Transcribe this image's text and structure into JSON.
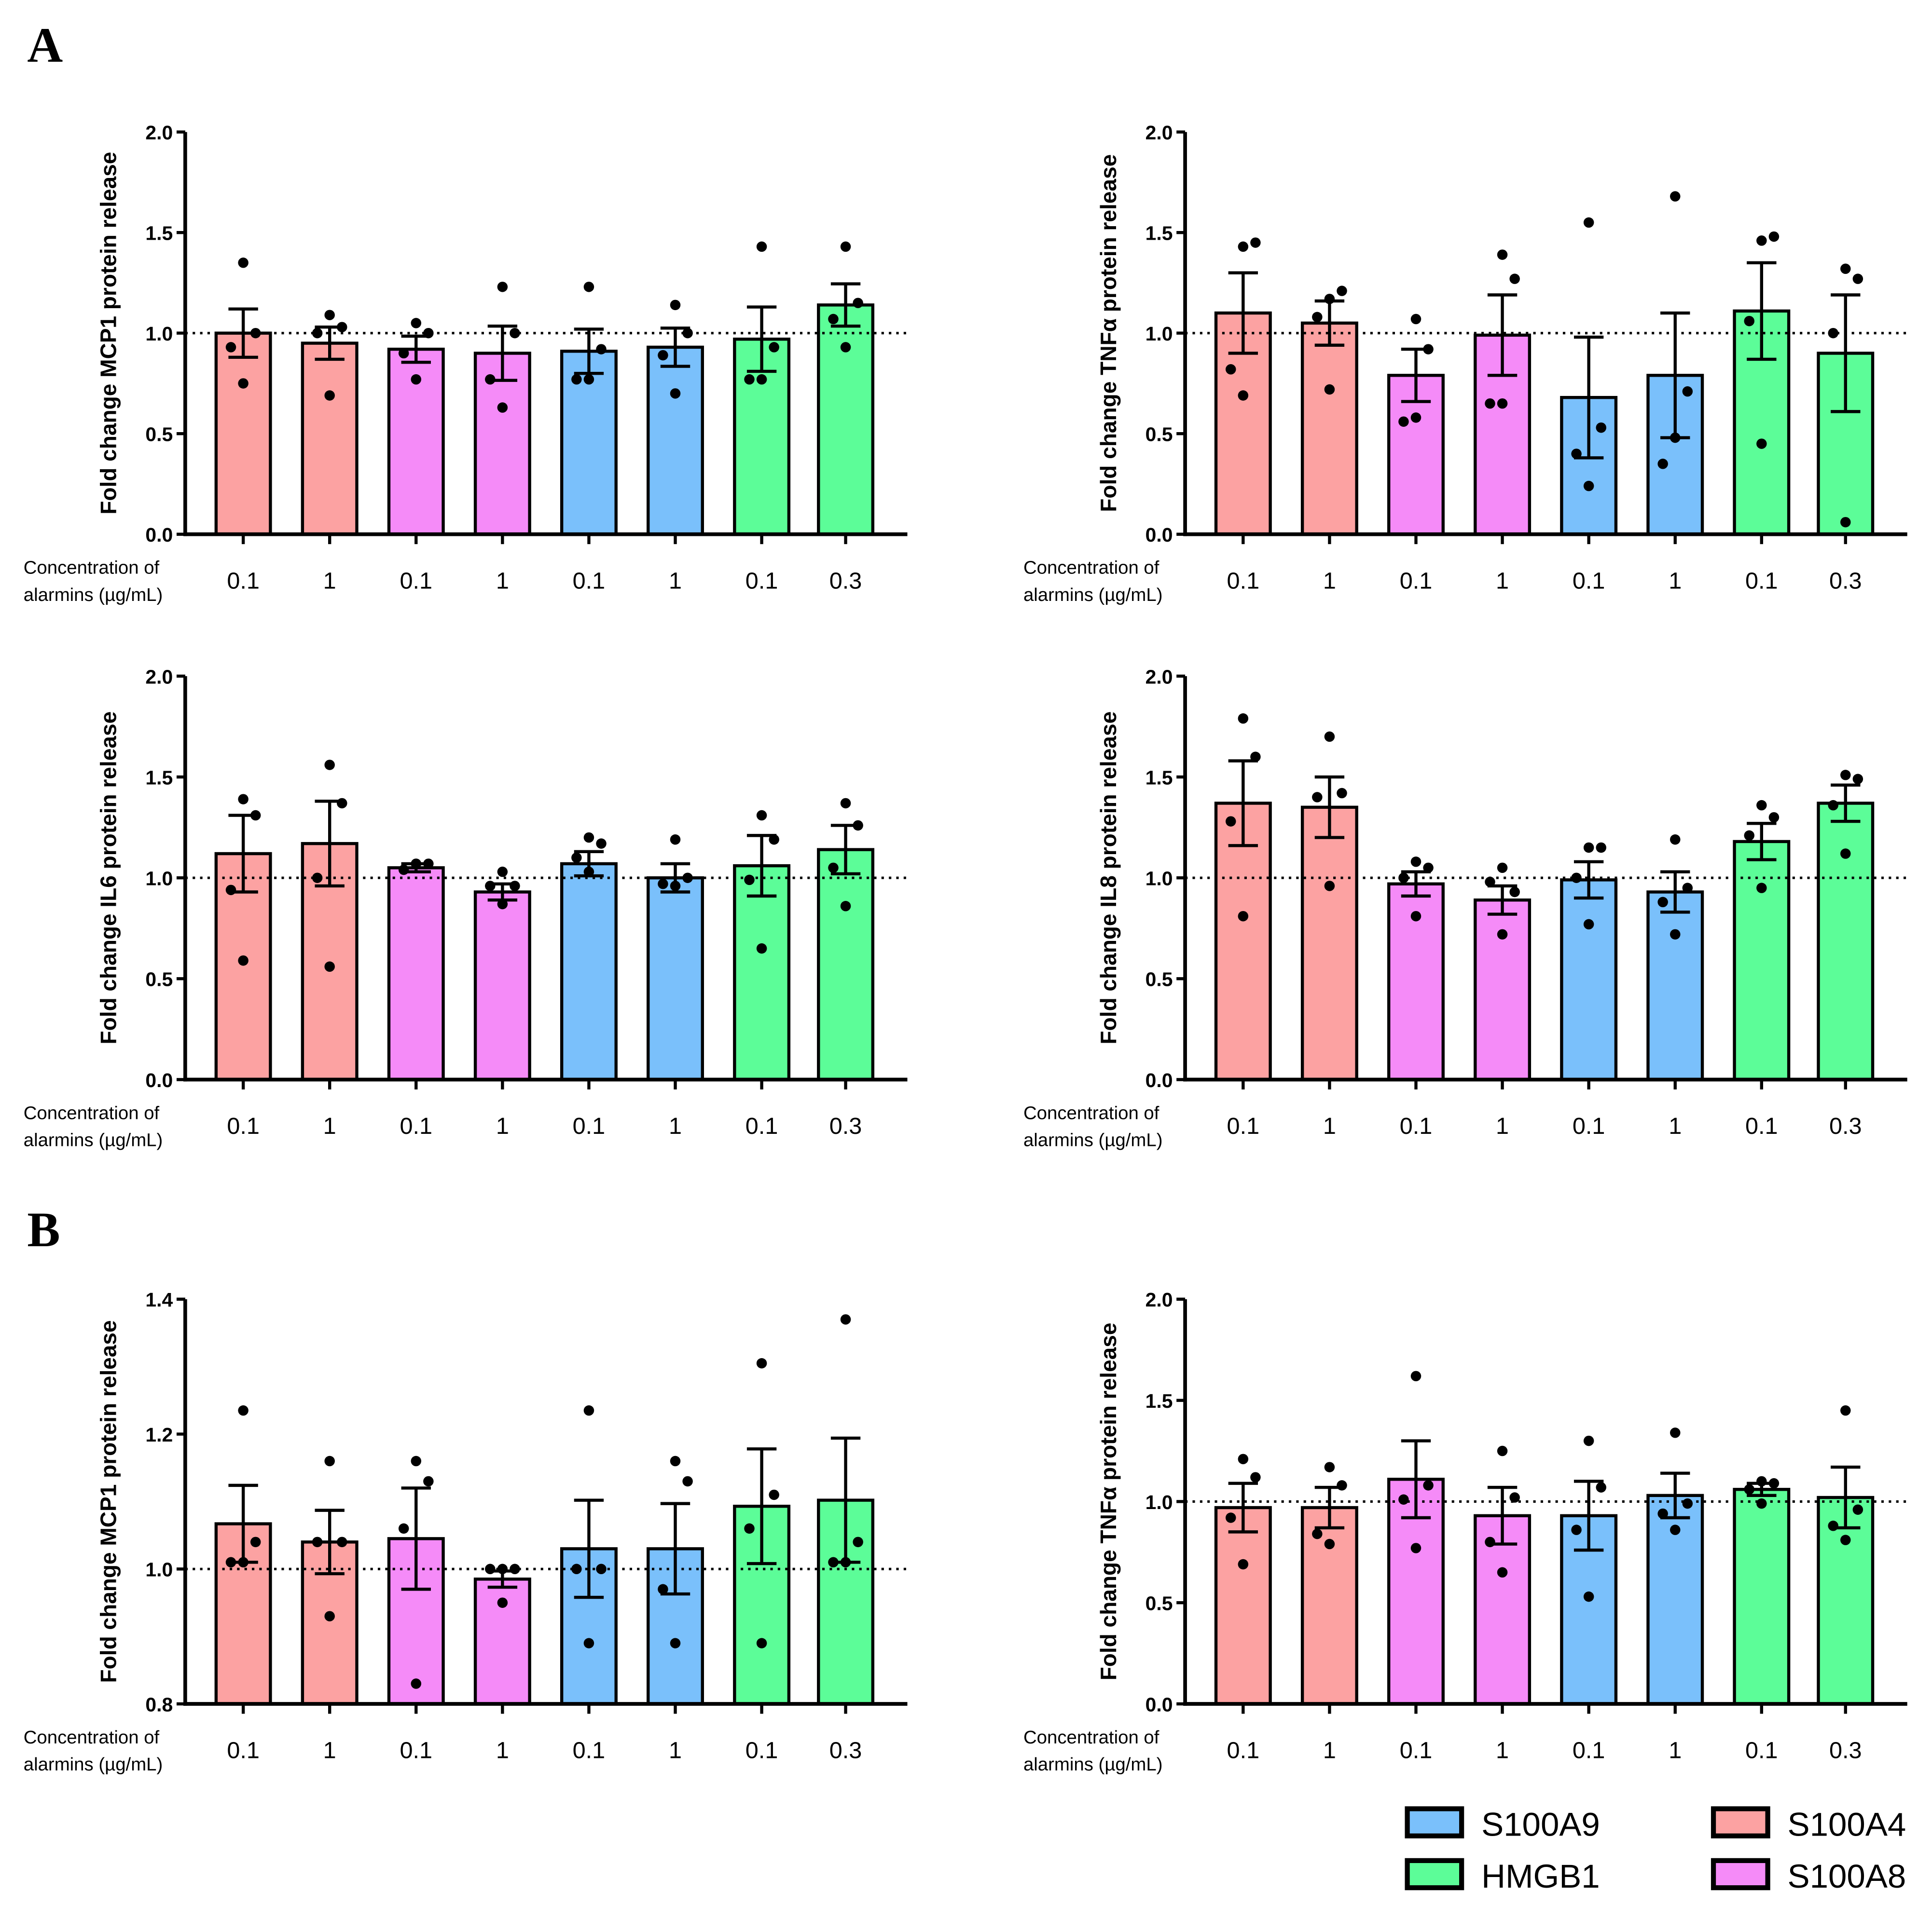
{
  "panel_labels": [
    "A",
    "B"
  ],
  "concentration_label": [
    "Concentration of",
    "alarmins (µg/mL)"
  ],
  "legend": [
    {
      "name": "S100A9",
      "color": "#7ac0fb"
    },
    {
      "name": "S100A4",
      "color": "#fca2a2"
    },
    {
      "name": "HMGB1",
      "color": "#5cfd98"
    },
    {
      "name": "S100A8",
      "color": "#f58bf8"
    }
  ],
  "chart_data": [
    {
      "type": "bar",
      "panel": "A",
      "ylabel": "Fold change MCP1 protein release",
      "ylim": [
        0,
        2
      ],
      "yticks": [
        "0.0",
        "0.5",
        "1.0",
        "1.5",
        "2.0"
      ],
      "yticks_values": [
        0,
        0.5,
        1,
        1.5,
        2
      ],
      "reference_line": 1.0,
      "categories": [
        "0.1",
        "1",
        "0.1",
        "1",
        "0.1",
        "1",
        "0.1",
        "0.3"
      ],
      "groups": [
        "S100A4",
        "S100A4",
        "S100A8",
        "S100A8",
        "S100A9",
        "S100A9",
        "HMGB1",
        "HMGB1"
      ],
      "values": [
        1.0,
        0.95,
        0.92,
        0.9,
        0.91,
        0.93,
        0.97,
        1.14
      ],
      "sem": [
        0.12,
        0.08,
        0.065,
        0.135,
        0.11,
        0.095,
        0.16,
        0.105
      ],
      "points": [
        [
          1.35,
          1.0,
          0.93,
          0.75
        ],
        [
          1.09,
          1.03,
          1.0,
          0.69
        ],
        [
          1.05,
          1.0,
          0.9,
          0.77
        ],
        [
          1.23,
          1.0,
          0.77,
          0.63
        ],
        [
          1.23,
          0.92,
          0.77,
          0.77
        ],
        [
          1.14,
          1.0,
          0.89,
          0.7
        ],
        [
          1.43,
          0.93,
          0.77,
          0.77
        ],
        [
          1.43,
          1.15,
          1.07,
          0.93
        ]
      ]
    },
    {
      "type": "bar",
      "panel": "A",
      "ylabel": "Fold change TNFα protein release",
      "ylim": [
        0,
        2
      ],
      "yticks": [
        "0.0",
        "0.5",
        "1.0",
        "1.5",
        "2.0"
      ],
      "yticks_values": [
        0,
        0.5,
        1,
        1.5,
        2
      ],
      "reference_line": 1.0,
      "categories": [
        "0.1",
        "1",
        "0.1",
        "1",
        "0.1",
        "1",
        "0.1",
        "0.3"
      ],
      "groups": [
        "S100A4",
        "S100A4",
        "S100A8",
        "S100A8",
        "S100A9",
        "S100A9",
        "HMGB1",
        "HMGB1"
      ],
      "values": [
        1.1,
        1.05,
        0.79,
        0.99,
        0.68,
        0.79,
        1.11,
        0.9
      ],
      "sem": [
        0.2,
        0.11,
        0.13,
        0.2,
        0.3,
        0.31,
        0.24,
        0.29
      ],
      "points": [
        [
          1.43,
          1.45,
          0.82,
          0.69
        ],
        [
          1.17,
          1.21,
          1.08,
          0.72
        ],
        [
          1.07,
          0.92,
          0.56,
          0.58
        ],
        [
          1.39,
          1.27,
          0.65,
          0.65
        ],
        [
          1.55,
          0.53,
          0.4,
          0.24
        ],
        [
          1.68,
          0.71,
          0.35,
          0.48
        ],
        [
          1.46,
          1.48,
          1.06,
          0.45
        ],
        [
          1.32,
          1.27,
          1.0,
          0.06
        ]
      ]
    },
    {
      "type": "bar",
      "panel": "A",
      "ylabel": "Fold change IL6 protein release",
      "ylim": [
        0,
        2
      ],
      "yticks": [
        "0.0",
        "0.5",
        "1.0",
        "1.5",
        "2.0"
      ],
      "yticks_values": [
        0,
        0.5,
        1,
        1.5,
        2
      ],
      "reference_line": 1.0,
      "categories": [
        "0.1",
        "1",
        "0.1",
        "1",
        "0.1",
        "1",
        "0.1",
        "0.3"
      ],
      "groups": [
        "S100A4",
        "S100A4",
        "S100A8",
        "S100A8",
        "S100A9",
        "S100A9",
        "HMGB1",
        "HMGB1"
      ],
      "values": [
        1.12,
        1.17,
        1.05,
        0.93,
        1.07,
        1.0,
        1.06,
        1.14
      ],
      "sem": [
        0.19,
        0.21,
        0.02,
        0.04,
        0.06,
        0.07,
        0.15,
        0.12
      ],
      "points": [
        [
          1.39,
          1.31,
          0.94,
          0.59
        ],
        [
          1.56,
          1.37,
          1.0,
          0.56
        ],
        [
          1.07,
          1.07,
          1.04,
          1.07
        ],
        [
          1.03,
          0.96,
          0.96,
          0.87
        ],
        [
          1.2,
          1.17,
          1.1,
          1.03
        ],
        [
          1.19,
          1.0,
          0.97,
          0.96
        ],
        [
          1.31,
          1.19,
          0.99,
          0.65
        ],
        [
          1.37,
          1.26,
          1.05,
          0.86
        ]
      ]
    },
    {
      "type": "bar",
      "panel": "A",
      "ylabel": "Fold change IL8 protein release",
      "ylim": [
        0,
        2
      ],
      "yticks": [
        "0.0",
        "0.5",
        "1.0",
        "1.5",
        "2.0"
      ],
      "yticks_values": [
        0,
        0.5,
        1,
        1.5,
        2
      ],
      "reference_line": 1.0,
      "categories": [
        "0.1",
        "1",
        "0.1",
        "1",
        "0.1",
        "1",
        "0.1",
        "0.3"
      ],
      "groups": [
        "S100A4",
        "S100A4",
        "S100A8",
        "S100A8",
        "S100A9",
        "S100A9",
        "HMGB1",
        "HMGB1"
      ],
      "values": [
        1.37,
        1.35,
        0.97,
        0.89,
        0.99,
        0.93,
        1.18,
        1.37
      ],
      "sem": [
        0.21,
        0.15,
        0.06,
        0.07,
        0.09,
        0.1,
        0.09,
        0.09
      ],
      "points": [
        [
          1.79,
          1.6,
          1.28,
          0.81
        ],
        [
          1.7,
          1.42,
          1.4,
          0.96
        ],
        [
          1.08,
          1.05,
          1.0,
          0.81
        ],
        [
          1.05,
          0.93,
          0.98,
          0.72
        ],
        [
          1.15,
          1.15,
          1.0,
          0.77
        ],
        [
          1.19,
          0.95,
          0.88,
          0.72
        ],
        [
          1.36,
          1.3,
          1.21,
          0.95
        ],
        [
          1.51,
          1.49,
          1.36,
          1.12
        ]
      ]
    },
    {
      "type": "bar",
      "panel": "B",
      "ylabel": "Fold change MCP1 protein release",
      "ylim": [
        0.8,
        1.4
      ],
      "yticks": [
        "0.8",
        "1.0",
        "1.2",
        "1.4"
      ],
      "yticks_values": [
        0.8,
        1.0,
        1.2,
        1.4
      ],
      "reference_line": 1.0,
      "categories": [
        "0.1",
        "1",
        "0.1",
        "1",
        "0.1",
        "1",
        "0.1",
        "0.3"
      ],
      "groups": [
        "S100A4",
        "S100A4",
        "S100A8",
        "S100A8",
        "S100A9",
        "S100A9",
        "HMGB1",
        "HMGB1"
      ],
      "values": [
        1.067,
        1.04,
        1.045,
        0.985,
        1.03,
        1.03,
        1.093,
        1.102
      ],
      "sem": [
        0.057,
        0.047,
        0.075,
        0.012,
        0.072,
        0.067,
        0.085,
        0.092
      ],
      "points": [
        [
          1.235,
          1.04,
          1.01,
          1.01
        ],
        [
          1.16,
          1.04,
          1.04,
          0.93
        ],
        [
          1.16,
          1.13,
          1.06,
          0.83
        ],
        [
          1.0,
          1.0,
          1.0,
          0.95
        ],
        [
          1.235,
          1.0,
          1.0,
          0.89
        ],
        [
          1.16,
          1.13,
          0.97,
          0.89
        ],
        [
          1.305,
          1.11,
          1.06,
          0.89
        ],
        [
          1.37,
          1.04,
          1.01,
          1.01
        ]
      ]
    },
    {
      "type": "bar",
      "panel": "B",
      "ylabel": "Fold change TNFα protein release",
      "ylim": [
        0,
        2
      ],
      "yticks": [
        "0.0",
        "0.5",
        "1.0",
        "1.5",
        "2.0"
      ],
      "yticks_values": [
        0,
        0.5,
        1,
        1.5,
        2
      ],
      "reference_line": 1.0,
      "categories": [
        "0.1",
        "1",
        "0.1",
        "1",
        "0.1",
        "1",
        "0.1",
        "0.3"
      ],
      "groups": [
        "S100A4",
        "S100A4",
        "S100A8",
        "S100A8",
        "S100A9",
        "S100A9",
        "HMGB1",
        "HMGB1"
      ],
      "values": [
        0.97,
        0.97,
        1.11,
        0.93,
        0.93,
        1.03,
        1.06,
        1.02
      ],
      "sem": [
        0.12,
        0.1,
        0.19,
        0.14,
        0.17,
        0.11,
        0.03,
        0.15
      ],
      "points": [
        [
          1.21,
          1.12,
          0.92,
          0.69
        ],
        [
          1.17,
          1.08,
          0.84,
          0.79
        ],
        [
          1.62,
          1.08,
          1.01,
          0.77
        ],
        [
          1.25,
          1.02,
          0.8,
          0.65
        ],
        [
          1.3,
          1.07,
          0.86,
          0.53
        ],
        [
          1.34,
          0.99,
          0.94,
          0.86
        ],
        [
          1.1,
          1.09,
          1.06,
          0.99
        ],
        [
          1.45,
          0.96,
          0.88,
          0.81
        ]
      ]
    }
  ]
}
